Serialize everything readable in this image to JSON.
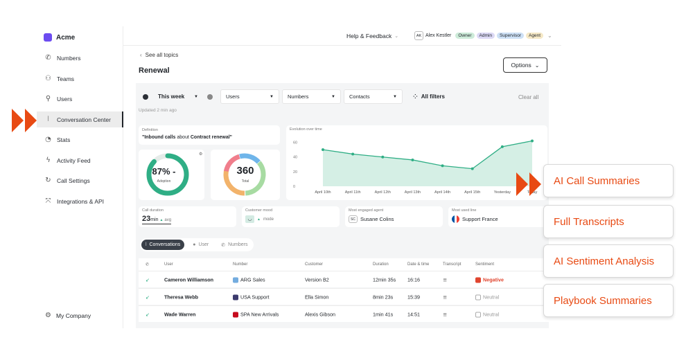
{
  "sidebar": {
    "brand": "Acme",
    "items": [
      {
        "label": "Numbers",
        "icon": "phone-icon"
      },
      {
        "label": "Teams",
        "icon": "teams-icon"
      },
      {
        "label": "Users",
        "icon": "user-icon"
      },
      {
        "label": "Conversation Center",
        "icon": "waveform-icon"
      },
      {
        "label": "Stats",
        "icon": "stats-icon"
      },
      {
        "label": "Activity Feed",
        "icon": "bolt-icon"
      },
      {
        "label": "Call Settings",
        "icon": "settings-icon"
      },
      {
        "label": "Integrations & API",
        "icon": "integrations-icon"
      }
    ],
    "company": "My Company"
  },
  "topbar": {
    "help": "Help & Feedback",
    "user_initials": "AK",
    "user_name": "Alex Kestler",
    "roles": [
      {
        "label": "Owner",
        "color": "#cdebd9"
      },
      {
        "label": "Admin",
        "color": "#dcd9f5"
      },
      {
        "label": "Supervisor",
        "color": "#cde0f5"
      },
      {
        "label": "Agent",
        "color": "#f5e8c6"
      }
    ]
  },
  "header": {
    "back": "See all topics",
    "title": "Renewal",
    "options": "Options"
  },
  "filters": {
    "period": "This week",
    "users": "Users",
    "numbers": "Numbers",
    "contacts": "Contacts",
    "all_filters": "All filters",
    "clear_all": "Clear all",
    "updated": "Updated 2 min ago"
  },
  "definition": {
    "label": "Definition",
    "quote_open": "\"",
    "bold1": "Inbound calls",
    "middle": " about ",
    "bold2": "Contract renewal",
    "quote_close": "\""
  },
  "adoption": {
    "value": "87% -",
    "label": "Adoption",
    "fraction": 0.87
  },
  "total": {
    "value": "360",
    "label": "Total"
  },
  "chart_data": {
    "type": "area",
    "title": "Evolution over time",
    "categories": [
      "April 10th",
      "April 11th",
      "April 12th",
      "April 13th",
      "April 14th",
      "April 15th",
      "Yesterday",
      "Today"
    ],
    "values": [
      50,
      44,
      40,
      36,
      28,
      24,
      54,
      62
    ],
    "y_ticks": [
      0,
      20,
      40,
      60
    ],
    "ylim": [
      0,
      70
    ],
    "color": "#2fae85"
  },
  "metrics": {
    "duration_label": "Call duration",
    "duration_value": "23",
    "duration_unit": "min",
    "duration_trend": "▲",
    "duration_suffix": "avg",
    "mood_label": "Customer mood",
    "mood_trend": "▲",
    "mood_suffix": "mode",
    "agent_label": "Most engaged agent",
    "agent_initials": "SC",
    "agent_name": "Susane Colins",
    "line_label": "Most used line",
    "line_name": "Support France"
  },
  "tabs": [
    {
      "label": "Conversations",
      "icon": "waveform-icon"
    },
    {
      "label": "User",
      "icon": "user-icon"
    },
    {
      "label": "Numbers",
      "icon": "phone-icon"
    }
  ],
  "table": {
    "headers": [
      "User",
      "Number",
      "Customer",
      "Duration",
      "Date & time",
      "Transcript",
      "Sentiment"
    ],
    "rows": [
      {
        "user": "Cameron Williamson",
        "number": "ARG Sales",
        "customer": "Version B2",
        "duration": "12min 35s",
        "time": "16:16",
        "sentiment": "Negative",
        "flag": "#74acdf"
      },
      {
        "user": "Theresa Webb",
        "number": "USA Support",
        "customer": "Ella Simon",
        "duration": "8min 23s",
        "time": "15:39",
        "sentiment": "Neutral",
        "flag": "#3c3b6e"
      },
      {
        "user": "Wade Warren",
        "number": "SPA New Arrivals",
        "customer": "Alexis Gibson",
        "duration": "1min 41s",
        "time": "14:51",
        "sentiment": "Neutral",
        "flag": "#c60b1e"
      }
    ]
  },
  "features": [
    {
      "label": "AI Call Summaries"
    },
    {
      "label": "Full Transcripts"
    },
    {
      "label": "AI Sentiment Analysis"
    },
    {
      "label": "Playbook Summaries"
    }
  ],
  "colors": {
    "accent": "#e84a13",
    "green": "#2fae85",
    "negative": "#e0452f"
  }
}
